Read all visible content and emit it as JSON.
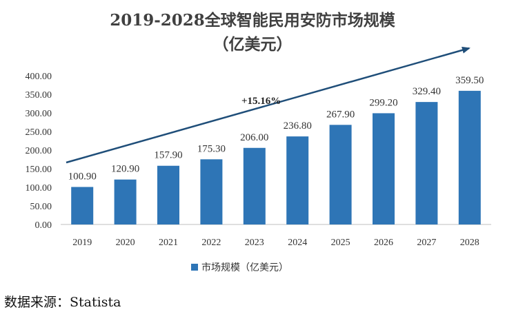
{
  "chart_data": {
    "type": "bar",
    "title_line1": "2019-2028全球智能民用安防市场规模",
    "title_line2": "（亿美元）",
    "categories": [
      "2019",
      "2020",
      "2021",
      "2022",
      "2023",
      "2024",
      "2025",
      "2026",
      "2027",
      "2028"
    ],
    "series": [
      {
        "name": "市场规模（亿美元）",
        "color": "#2E75B6",
        "values": [
          100.9,
          120.9,
          157.9,
          175.3,
          206.0,
          236.8,
          267.9,
          299.2,
          329.4,
          359.5
        ],
        "labels": [
          "100.90",
          "120.90",
          "157.90",
          "175.30",
          "206.00",
          "236.80",
          "267.90",
          "299.20",
          "329.40",
          "359.50"
        ]
      }
    ],
    "ylim": [
      0,
      400
    ],
    "yticks": [
      "0.00",
      "50.00",
      "100.00",
      "150.00",
      "200.00",
      "250.00",
      "300.00",
      "350.00",
      "400.00"
    ],
    "grid": false,
    "legend_position": "bottom",
    "annotation": {
      "text": "+15.16%",
      "arrow": true,
      "arrow_color": "#1F4E79"
    }
  },
  "source": "数据来源：Statista"
}
